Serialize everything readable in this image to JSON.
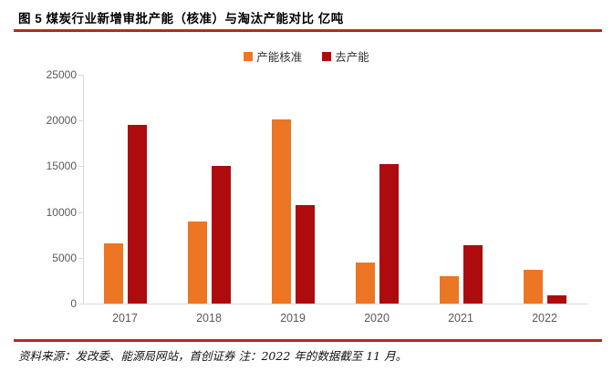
{
  "title": "图 5 煤炭行业新增审批产能（核准）与淘汰产能对比 亿吨",
  "footer": "资料来源：发改委、能源局网站，首创证券 注：2022 年的数据截至 11 月。",
  "colors": {
    "series_approved": "#EC7623",
    "series_eliminated": "#AD0B0E",
    "divider_red": "#C0281E",
    "axis_gray": "#D9D9D9",
    "tick_label_gray": "#595959"
  },
  "chart_data": {
    "type": "bar",
    "title": "图 5 煤炭行业新增审批产能（核准）与淘汰产能对比 亿吨",
    "categories": [
      "2017",
      "2018",
      "2019",
      "2020",
      "2021",
      "2022"
    ],
    "series": [
      {
        "name": "产能核准",
        "color": "#EC7623",
        "values": [
          6600,
          9000,
          20100,
          4500,
          3000,
          3700
        ]
      },
      {
        "name": "去产能",
        "color": "#AD0B0E",
        "values": [
          19500,
          15000,
          10800,
          15200,
          6400,
          900
        ]
      }
    ],
    "xlabel": "",
    "ylabel": "",
    "ylim": [
      0,
      25000
    ],
    "yticks": [
      0,
      5000,
      10000,
      15000,
      20000,
      25000
    ],
    "grid": false,
    "legend_position": "top-center"
  }
}
